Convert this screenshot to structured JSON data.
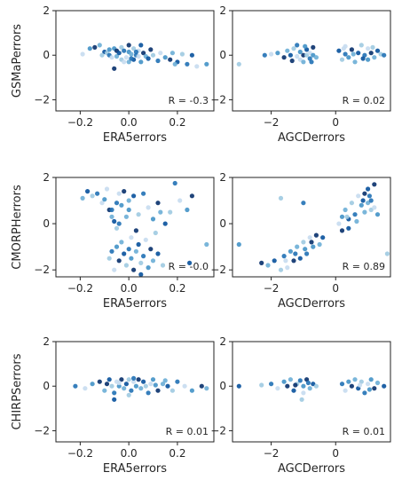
{
  "chart_data": [
    {
      "type": "scatter",
      "xlabel": "ERA5errors",
      "ylabel": "GSMaPerrors",
      "xticks": [
        "−0.2",
        "0.0",
        "0.2"
      ],
      "yticks": [
        "−2",
        "0",
        "2"
      ],
      "xlim": [
        -0.3,
        0.35
      ],
      "ylim": [
        -2.5,
        2
      ],
      "annotation": "R = -0.3",
      "points": [
        [
          -0.19,
          0.05
        ],
        [
          -0.16,
          0.3
        ],
        [
          -0.14,
          0.35
        ],
        [
          -0.12,
          0.45
        ],
        [
          -0.1,
          0.15
        ],
        [
          -0.09,
          0.1
        ],
        [
          -0.08,
          0.0
        ],
        [
          -0.07,
          -0.1
        ],
        [
          -0.06,
          0.3
        ],
        [
          -0.05,
          0.2
        ],
        [
          -0.05,
          -0.05
        ],
        [
          -0.04,
          0.1
        ],
        [
          -0.03,
          0.35
        ],
        [
          -0.02,
          0.2
        ],
        [
          -0.01,
          -0.1
        ],
        [
          0.0,
          0.15
        ],
        [
          0.0,
          0.45
        ],
        [
          0.01,
          0.05
        ],
        [
          0.02,
          -0.2
        ],
        [
          0.02,
          0.3
        ],
        [
          0.03,
          0.0
        ],
        [
          0.04,
          0.2
        ],
        [
          0.05,
          -0.3
        ],
        [
          0.06,
          0.1
        ],
        [
          0.07,
          -0.05
        ],
        [
          0.08,
          -0.15
        ],
        [
          0.1,
          0.0
        ],
        [
          0.12,
          -0.25
        ],
        [
          0.13,
          0.1
        ],
        [
          0.15,
          -0.1
        ],
        [
          0.17,
          -0.2
        ],
        [
          0.18,
          0.1
        ],
        [
          0.2,
          -0.3
        ],
        [
          0.22,
          0.05
        ],
        [
          0.24,
          -0.4
        ],
        [
          0.28,
          -0.5
        ],
        [
          0.32,
          -0.4
        ],
        [
          -0.06,
          -0.6
        ],
        [
          0.0,
          -0.3
        ],
        [
          0.05,
          0.45
        ],
        [
          -0.03,
          -0.2
        ],
        [
          0.01,
          -0.15
        ],
        [
          0.04,
          -0.05
        ],
        [
          -0.08,
          0.25
        ],
        [
          0.09,
          0.25
        ],
        [
          0.19,
          -0.4
        ],
        [
          0.26,
          0.0
        ],
        [
          -0.11,
          0.0
        ],
        [
          0.03,
          0.15
        ],
        [
          -0.02,
          -0.3
        ]
      ]
    },
    {
      "type": "scatter",
      "xlabel": "AGCDerrors",
      "ylabel": "",
      "xticks": [
        "−2",
        "0"
      ],
      "yticks": [
        "−2",
        "0",
        "2"
      ],
      "xlim": [
        -3.2,
        1.7
      ],
      "ylim": [
        -2.5,
        2
      ],
      "annotation": "R = 0.02",
      "points": [
        [
          -3.0,
          -0.4
        ],
        [
          -2.2,
          0.0
        ],
        [
          -2.0,
          0.05
        ],
        [
          -1.8,
          0.1
        ],
        [
          -1.6,
          -0.1
        ],
        [
          -1.5,
          0.2
        ],
        [
          -1.4,
          0.0
        ],
        [
          -1.3,
          0.3
        ],
        [
          -1.2,
          0.45
        ],
        [
          -1.1,
          -0.2
        ],
        [
          -1.1,
          0.15
        ],
        [
          -1.0,
          0.0
        ],
        [
          -1.0,
          -0.3
        ],
        [
          -0.9,
          0.25
        ],
        [
          -0.9,
          0.0
        ],
        [
          -0.8,
          -0.15
        ],
        [
          -0.8,
          0.1
        ],
        [
          -0.7,
          0.0
        ],
        [
          -0.7,
          0.35
        ],
        [
          -0.6,
          -0.1
        ],
        [
          0.1,
          0.2
        ],
        [
          0.2,
          -0.2
        ],
        [
          0.3,
          0.05
        ],
        [
          0.3,
          0.4
        ],
        [
          0.4,
          -0.1
        ],
        [
          0.5,
          0.25
        ],
        [
          0.6,
          -0.3
        ],
        [
          0.7,
          0.1
        ],
        [
          0.8,
          0.45
        ],
        [
          0.9,
          0.0
        ],
        [
          1.0,
          0.3
        ],
        [
          1.0,
          -0.2
        ],
        [
          1.1,
          0.1
        ],
        [
          1.2,
          -0.1
        ],
        [
          1.3,
          0.2
        ],
        [
          1.4,
          0.05
        ],
        [
          1.5,
          0.0
        ],
        [
          -1.2,
          -0.05
        ],
        [
          -0.95,
          0.4
        ],
        [
          -1.35,
          -0.25
        ],
        [
          0.55,
          0.05
        ],
        [
          0.85,
          -0.15
        ],
        [
          1.15,
          0.35
        ],
        [
          -0.75,
          -0.3
        ],
        [
          0.25,
          0.3
        ]
      ]
    },
    {
      "type": "scatter",
      "xlabel": "ERA5errors",
      "ylabel": "CMORPHerrors",
      "xticks": [
        "−0.2",
        "0.0",
        "0.2"
      ],
      "yticks": [
        "−2",
        "0",
        "2"
      ],
      "xlim": [
        -0.3,
        0.35
      ],
      "ylim": [
        -2.3,
        2
      ],
      "annotation": "R = -0.0",
      "points": [
        [
          -0.19,
          1.1
        ],
        [
          -0.17,
          1.4
        ],
        [
          -0.15,
          1.2
        ],
        [
          -0.13,
          1.3
        ],
        [
          -0.11,
          0.9
        ],
        [
          -0.1,
          1.05
        ],
        [
          -0.08,
          0.6
        ],
        [
          -0.07,
          0.3
        ],
        [
          -0.06,
          0.1
        ],
        [
          -0.05,
          -0.2
        ],
        [
          -0.04,
          0.0
        ],
        [
          -0.04,
          1.3
        ],
        [
          -0.03,
          0.8
        ],
        [
          -0.02,
          1.4
        ],
        [
          0.0,
          1.0
        ],
        [
          0.02,
          1.2
        ],
        [
          0.04,
          0.4
        ],
        [
          0.06,
          1.3
        ],
        [
          0.08,
          0.7
        ],
        [
          0.1,
          0.2
        ],
        [
          0.12,
          0.9
        ],
        [
          0.13,
          0.5
        ],
        [
          0.15,
          0.0
        ],
        [
          0.17,
          0.5
        ],
        [
          0.19,
          1.75
        ],
        [
          0.21,
          1.0
        ],
        [
          0.24,
          0.6
        ],
        [
          0.26,
          1.2
        ],
        [
          0.32,
          -0.9
        ],
        [
          0.25,
          -1.7
        ],
        [
          -0.08,
          -1.5
        ],
        [
          -0.07,
          -1.2
        ],
        [
          -0.06,
          -2.0
        ],
        [
          -0.05,
          -1.0
        ],
        [
          -0.04,
          -1.6
        ],
        [
          -0.03,
          -0.8
        ],
        [
          -0.02,
          -1.3
        ],
        [
          -0.01,
          -1.8
        ],
        [
          0.0,
          -1.1
        ],
        [
          0.01,
          -0.6
        ],
        [
          0.01,
          -1.5
        ],
        [
          0.02,
          -2.0
        ],
        [
          0.03,
          -1.2
        ],
        [
          0.04,
          -0.9
        ],
        [
          0.05,
          -1.7
        ],
        [
          0.06,
          -1.4
        ],
        [
          0.07,
          -0.7
        ],
        [
          0.08,
          -1.9
        ],
        [
          0.09,
          -1.1
        ],
        [
          0.1,
          -1.6
        ],
        [
          0.12,
          -1.3
        ],
        [
          0.14,
          -1.8
        ],
        [
          -0.07,
          0.6
        ],
        [
          -0.09,
          1.5
        ],
        [
          0.0,
          0.6
        ],
        [
          0.03,
          -0.3
        ],
        [
          -0.01,
          0.3
        ],
        [
          0.05,
          -2.2
        ],
        [
          0.11,
          -0.4
        ],
        [
          -0.05,
          0.9
        ]
      ]
    },
    {
      "type": "scatter",
      "xlabel": "AGCDerrors",
      "ylabel": "",
      "xticks": [
        "−2",
        "0"
      ],
      "yticks": [
        "−2",
        "0",
        "2"
      ],
      "xlim": [
        -3.2,
        1.7
      ],
      "ylim": [
        -2.3,
        2
      ],
      "annotation": "R = 0.89",
      "points": [
        [
          -3.0,
          -0.9
        ],
        [
          -2.3,
          -1.7
        ],
        [
          -2.1,
          -1.8
        ],
        [
          -1.9,
          -1.6
        ],
        [
          -1.7,
          -2.0
        ],
        [
          -1.6,
          -1.4
        ],
        [
          -1.5,
          -1.9
        ],
        [
          -1.4,
          -1.2
        ],
        [
          -1.3,
          -1.6
        ],
        [
          -1.2,
          -1.0
        ],
        [
          -1.1,
          -1.5
        ],
        [
          -1.0,
          -0.8
        ],
        [
          -0.9,
          -1.3
        ],
        [
          -0.8,
          -0.6
        ],
        [
          -0.7,
          -1.0
        ],
        [
          -0.6,
          -0.5
        ],
        [
          -0.5,
          -0.9
        ],
        [
          -0.4,
          -0.6
        ],
        [
          -1.7,
          1.1
        ],
        [
          -1.0,
          0.9
        ],
        [
          0.1,
          0.0
        ],
        [
          0.2,
          0.3
        ],
        [
          0.2,
          -0.3
        ],
        [
          0.3,
          0.6
        ],
        [
          0.4,
          0.2
        ],
        [
          0.5,
          0.9
        ],
        [
          0.6,
          0.4
        ],
        [
          0.7,
          1.2
        ],
        [
          0.8,
          0.8
        ],
        [
          0.9,
          1.3
        ],
        [
          1.0,
          0.9
        ],
        [
          1.0,
          1.5
        ],
        [
          1.1,
          0.6
        ],
        [
          1.1,
          1.0
        ],
        [
          1.2,
          0.7
        ],
        [
          1.3,
          0.4
        ],
        [
          1.2,
          1.7
        ],
        [
          0.9,
          0.5
        ],
        [
          0.4,
          -0.2
        ],
        [
          1.6,
          -1.3
        ],
        [
          -1.25,
          -1.3
        ],
        [
          -1.55,
          -1.6
        ],
        [
          -0.95,
          -1.1
        ],
        [
          -0.75,
          -0.8
        ],
        [
          0.65,
          0.1
        ],
        [
          0.85,
          1.0
        ],
        [
          0.35,
          0.3
        ],
        [
          1.05,
          1.2
        ]
      ]
    },
    {
      "type": "scatter",
      "xlabel": "ERA5errors",
      "ylabel": "CHIRPSerrors",
      "xticks": [
        "−0.2",
        "0.0",
        "0.2"
      ],
      "yticks": [
        "−2",
        "0",
        "2"
      ],
      "xlim": [
        -0.3,
        0.35
      ],
      "ylim": [
        -2.5,
        2
      ],
      "annotation": "R = 0.01",
      "points": [
        [
          -0.22,
          0.0
        ],
        [
          -0.18,
          -0.1
        ],
        [
          -0.15,
          0.1
        ],
        [
          -0.12,
          0.2
        ],
        [
          -0.1,
          -0.2
        ],
        [
          -0.08,
          0.3
        ],
        [
          -0.07,
          0.0
        ],
        [
          -0.06,
          -0.3
        ],
        [
          -0.05,
          0.2
        ],
        [
          -0.04,
          0.0
        ],
        [
          -0.03,
          0.3
        ],
        [
          -0.02,
          -0.1
        ],
        [
          -0.01,
          0.1
        ],
        [
          0.0,
          0.3
        ],
        [
          0.01,
          -0.2
        ],
        [
          0.02,
          0.2
        ],
        [
          0.03,
          0.0
        ],
        [
          0.04,
          0.3
        ],
        [
          0.05,
          -0.1
        ],
        [
          0.06,
          0.2
        ],
        [
          0.07,
          0.0
        ],
        [
          0.08,
          -0.3
        ],
        [
          0.09,
          0.1
        ],
        [
          0.1,
          0.3
        ],
        [
          0.12,
          -0.2
        ],
        [
          0.14,
          0.1
        ],
        [
          0.16,
          0.0
        ],
        [
          0.18,
          -0.2
        ],
        [
          0.2,
          0.2
        ],
        [
          0.23,
          0.0
        ],
        [
          0.26,
          -0.2
        ],
        [
          0.3,
          0.0
        ],
        [
          0.32,
          -0.1
        ],
        [
          -0.06,
          -0.6
        ],
        [
          0.0,
          -0.4
        ],
        [
          0.02,
          0.35
        ],
        [
          -0.04,
          0.15
        ],
        [
          0.11,
          0.05
        ],
        [
          -0.09,
          0.1
        ],
        [
          0.15,
          0.25
        ]
      ]
    },
    {
      "type": "scatter",
      "xlabel": "AGCDerrors",
      "ylabel": "",
      "xticks": [
        "−2",
        "0"
      ],
      "yticks": [
        "−2",
        "0",
        "2"
      ],
      "xlim": [
        -3.2,
        1.7
      ],
      "ylim": [
        -2.5,
        2
      ],
      "annotation": "R = 0.01",
      "points": [
        [
          -3.0,
          0.0
        ],
        [
          -2.3,
          0.05
        ],
        [
          -2.0,
          0.1
        ],
        [
          -1.8,
          -0.1
        ],
        [
          -1.6,
          0.2
        ],
        [
          -1.5,
          0.0
        ],
        [
          -1.4,
          0.3
        ],
        [
          -1.3,
          -0.2
        ],
        [
          -1.2,
          0.1
        ],
        [
          -1.1,
          0.25
        ],
        [
          -1.0,
          -0.3
        ],
        [
          -1.0,
          0.0
        ],
        [
          -0.9,
          0.3
        ],
        [
          -0.8,
          -0.1
        ],
        [
          -0.7,
          0.1
        ],
        [
          -0.6,
          0.0
        ],
        [
          0.2,
          0.1
        ],
        [
          0.3,
          -0.2
        ],
        [
          0.4,
          0.2
        ],
        [
          0.5,
          0.0
        ],
        [
          0.6,
          0.3
        ],
        [
          0.7,
          -0.1
        ],
        [
          0.8,
          0.2
        ],
        [
          0.9,
          -0.3
        ],
        [
          1.0,
          0.1
        ],
        [
          1.1,
          0.3
        ],
        [
          1.2,
          -0.1
        ],
        [
          1.3,
          0.15
        ],
        [
          1.5,
          0.0
        ],
        [
          -1.05,
          -0.6
        ],
        [
          -0.85,
          0.15
        ],
        [
          0.75,
          0.05
        ],
        [
          1.05,
          -0.15
        ],
        [
          -1.25,
          0.05
        ]
      ]
    }
  ]
}
